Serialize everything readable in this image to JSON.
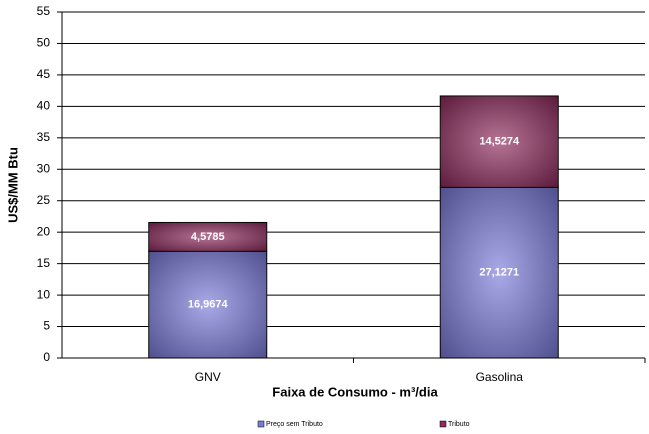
{
  "chart_data": {
    "type": "stacked-bar",
    "categories": [
      "GNV",
      "Gasolina"
    ],
    "series": [
      {
        "name": "Preço sem Tributo",
        "color": "#7b7bdc",
        "values": [
          16.9674,
          27.1271
        ],
        "value_labels": [
          "16,9674",
          "27,1271"
        ]
      },
      {
        "name": "Tributo",
        "color": "#8e2a5c",
        "values": [
          4.5785,
          14.5274
        ],
        "value_labels": [
          "4,5785",
          "14,5274"
        ]
      }
    ],
    "y_label": "US$/MM Btu",
    "x_label": "Faixa de Consumo - m³/dia",
    "ylim": [
      0,
      55
    ],
    "yticks": [
      0,
      5,
      10,
      15,
      20,
      25,
      30,
      35,
      40,
      45,
      50,
      55
    ],
    "grid": true,
    "legend": "bottom"
  }
}
